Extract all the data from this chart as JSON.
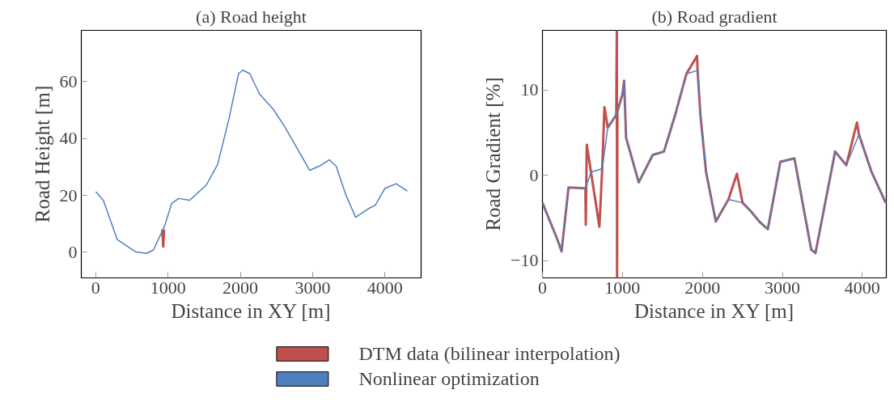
{
  "chart_data": [
    {
      "type": "line",
      "title": "(a) Road height",
      "xlabel": "Distance in XY [m]",
      "ylabel": "Road Height [m]",
      "xlim": [
        -200,
        4500
      ],
      "ylim": [
        -9,
        78
      ],
      "xticks": [
        0,
        1000,
        2000,
        3000,
        4000
      ],
      "yticks": [
        0,
        20,
        40,
        60
      ],
      "grid": false,
      "legend": "bottom",
      "series": [
        {
          "name": "DTM data (bilinear interpolation)",
          "color": "#c0504d",
          "x": [
            920,
            933,
            945
          ],
          "values": [
            8,
            2,
            8
          ]
        },
        {
          "name": "Nonlinear optimization",
          "color": "#4f7fbf",
          "x": [
            0,
            104,
            297,
            548,
            702,
            798,
            953,
            1049,
            1146,
            1300,
            1531,
            1686,
            1840,
            1975,
            2033,
            2130,
            2265,
            2457,
            2612,
            2804,
            2959,
            3094,
            3229,
            3325,
            3460,
            3595,
            3769,
            3865,
            4000,
            4154,
            4309
          ],
          "values": [
            21.3,
            18.3,
            4.5,
            0.2,
            -0.4,
            0.8,
            9.3,
            17.1,
            18.9,
            18.3,
            23.7,
            30.9,
            46.6,
            62.8,
            64,
            62.8,
            55.6,
            50.2,
            44.2,
            35.7,
            28.8,
            30.3,
            32.5,
            30.3,
            20.1,
            12.3,
            15.3,
            16.5,
            22.5,
            24.1,
            21.5
          ]
        }
      ]
    },
    {
      "type": "line",
      "title": "(b) Road gradient",
      "xlabel": "Distance in XY [m]",
      "ylabel": "Road Gradient [%]",
      "xlim": [
        0,
        4300
      ],
      "ylim": [
        -12,
        17
      ],
      "xticks": [
        0,
        1000,
        2000,
        3000,
        4000
      ],
      "yticks": [
        -10,
        0,
        10
      ],
      "grid": false,
      "legend": "bottom",
      "series": [
        {
          "name": "DTM data (bilinear interpolation)",
          "color": "#c0504d",
          "x": [
            0,
            186,
            239,
            326,
            537,
            542,
            554,
            607,
            712,
            747,
            775,
            817,
            923,
            930,
            933,
            937,
            1000,
            1021,
            1046,
            1204,
            1379,
            1519,
            1660,
            1800,
            1933,
            1940,
            1975,
            2046,
            2168,
            2326,
            2432,
            2502,
            2607,
            2712,
            2818,
            2975,
            3151,
            3361,
            3414,
            3660,
            3800,
            3933,
            3958,
            4116,
            4292
          ],
          "values": [
            -3.2,
            -7.5,
            -8.9,
            -1.4,
            -1.5,
            -5.8,
            3.6,
            0.4,
            -6,
            0.8,
            8,
            5.6,
            7.1,
            17,
            -12,
            7.5,
            9.5,
            11.1,
            4.4,
            -0.8,
            2.4,
            2.8,
            7.1,
            11.9,
            14,
            12.3,
            7.1,
            0.4,
            -5.4,
            -2.8,
            0.2,
            -3.2,
            -4.2,
            -5.4,
            -6.3,
            1.6,
            2.0,
            -8.7,
            -9.1,
            2.8,
            1.2,
            6.2,
            4.8,
            0.4,
            -3.2
          ]
        },
        {
          "name": "Nonlinear optimization",
          "color": "#4f7fbf",
          "x": [
            0,
            186,
            239,
            326,
            537,
            607,
            747,
            817,
            923,
            1000,
            1021,
            1046,
            1204,
            1379,
            1519,
            1660,
            1800,
            1940,
            1975,
            2046,
            2168,
            2326,
            2502,
            2607,
            2712,
            2818,
            2975,
            3151,
            3361,
            3414,
            3660,
            3800,
            3958,
            4116,
            4292
          ],
          "values": [
            -3.2,
            -7.5,
            -8.9,
            -1.4,
            -1.5,
            0.4,
            0.8,
            5.6,
            7.1,
            9.5,
            11.1,
            4.4,
            -0.8,
            2.4,
            2.8,
            7.1,
            11.9,
            12.3,
            7.1,
            0.4,
            -5.4,
            -2.8,
            -3.2,
            -4.2,
            -5.4,
            -6.3,
            1.6,
            2.0,
            -8.7,
            -9.1,
            2.8,
            1.2,
            4.8,
            0.4,
            -3.2
          ]
        }
      ]
    }
  ]
}
